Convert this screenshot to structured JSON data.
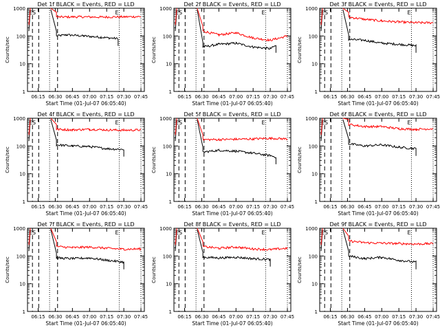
{
  "chart_data": [
    {
      "type": "line",
      "title": "Det 1f BLACK = Events, RED = LLD",
      "xlabel": "Start Time (01-Jul-07 06:05:40)",
      "ylabel": "Counts/sec",
      "yscale": "log",
      "ylim": [
        1,
        1000
      ],
      "x_ticks": [
        "06:15",
        "06:30",
        "06:45",
        "07:00",
        "07:15",
        "07:30",
        "07:45"
      ],
      "y_ticks": [
        "1",
        "10",
        "100",
        "1000"
      ],
      "markers": [
        "ES",
        "E"
      ],
      "series": [
        {
          "color": "#000000",
          "values": [
            {
              "x": "06:31",
              "y": 100
            },
            {
              "x": "06:40",
              "y": 110
            },
            {
              "x": "06:55",
              "y": 100
            },
            {
              "x": "07:10",
              "y": 90
            },
            {
              "x": "07:25",
              "y": 80
            }
          ]
        },
        {
          "color": "#ff0000",
          "values": [
            {
              "x": "06:31",
              "y": 480
            },
            {
              "x": "06:50",
              "y": 490
            },
            {
              "x": "07:10",
              "y": 480
            },
            {
              "x": "07:30",
              "y": 490
            },
            {
              "x": "07:45",
              "y": 500
            }
          ]
        }
      ]
    },
    {
      "type": "line",
      "title": "Det 2f BLACK = Events, RED = LLD",
      "xlabel": "Start Time (01-Jul-07 06:05:40)",
      "ylabel": "Counts/sec",
      "yscale": "log",
      "ylim": [
        1,
        1000
      ],
      "x_ticks": [
        "06:15",
        "06:30",
        "06:45",
        "07:00",
        "07:15",
        "07:30",
        "07:45"
      ],
      "y_ticks": [
        "1",
        "10",
        "100",
        "1000"
      ],
      "markers": [
        "ES",
        "E"
      ],
      "series": [
        {
          "color": "#000000",
          "values": [
            {
              "x": "06:31",
              "y": 40
            },
            {
              "x": "06:45",
              "y": 50
            },
            {
              "x": "07:00",
              "y": 55
            },
            {
              "x": "07:15",
              "y": 40
            },
            {
              "x": "07:30",
              "y": 35
            },
            {
              "x": "07:35",
              "y": 45
            }
          ]
        },
        {
          "color": "#ff0000",
          "values": [
            {
              "x": "06:31",
              "y": 150
            },
            {
              "x": "06:45",
              "y": 110
            },
            {
              "x": "07:00",
              "y": 130
            },
            {
              "x": "07:15",
              "y": 85
            },
            {
              "x": "07:30",
              "y": 70
            },
            {
              "x": "07:45",
              "y": 100
            }
          ]
        }
      ]
    },
    {
      "type": "line",
      "title": "Det 3f BLACK = Events, RED = LLD",
      "xlabel": "Start Time (01-Jul-07 06:05:40)",
      "ylabel": "Counts/sec",
      "yscale": "log",
      "ylim": [
        1,
        1000
      ],
      "x_ticks": [
        "06:15",
        "06:30",
        "06:45",
        "07:00",
        "07:15",
        "07:30",
        "07:45"
      ],
      "y_ticks": [
        "1",
        "10",
        "100",
        "1000"
      ],
      "markers": [
        "ES",
        "E"
      ],
      "series": [
        {
          "color": "#000000",
          "values": [
            {
              "x": "06:31",
              "y": 75
            },
            {
              "x": "06:45",
              "y": 70
            },
            {
              "x": "07:00",
              "y": 55
            },
            {
              "x": "07:15",
              "y": 50
            },
            {
              "x": "07:30",
              "y": 45
            }
          ]
        },
        {
          "color": "#ff0000",
          "values": [
            {
              "x": "06:31",
              "y": 480
            },
            {
              "x": "06:45",
              "y": 400
            },
            {
              "x": "07:00",
              "y": 350
            },
            {
              "x": "07:15",
              "y": 320
            },
            {
              "x": "07:30",
              "y": 300
            },
            {
              "x": "07:45",
              "y": 300
            }
          ]
        }
      ]
    },
    {
      "type": "line",
      "title": "Det 4f BLACK = Events, RED = LLD",
      "xlabel": "Start Time (01-Jul-07 06:05:40)",
      "ylabel": "Counts/sec",
      "yscale": "log",
      "ylim": [
        1,
        1000
      ],
      "x_ticks": [
        "06:15",
        "06:30",
        "06:45",
        "07:00",
        "07:15",
        "07:30",
        "07:45"
      ],
      "y_ticks": [
        "1",
        "10",
        "100",
        "1000"
      ],
      "markers": [
        "ES",
        "E"
      ],
      "series": [
        {
          "color": "#000000",
          "values": [
            {
              "x": "06:31",
              "y": 110
            },
            {
              "x": "06:45",
              "y": 100
            },
            {
              "x": "07:00",
              "y": 95
            },
            {
              "x": "07:15",
              "y": 80
            },
            {
              "x": "07:30",
              "y": 75
            }
          ]
        },
        {
          "color": "#ff0000",
          "values": [
            {
              "x": "06:31",
              "y": 400
            },
            {
              "x": "06:45",
              "y": 380
            },
            {
              "x": "07:00",
              "y": 400
            },
            {
              "x": "07:15",
              "y": 380
            },
            {
              "x": "07:30",
              "y": 370
            },
            {
              "x": "07:45",
              "y": 380
            }
          ]
        }
      ]
    },
    {
      "type": "line",
      "title": "Det 5f BLACK = Events, RED = LLD",
      "xlabel": "Start Time (01-Jul-07 06:05:40)",
      "ylabel": "Counts/sec",
      "yscale": "log",
      "ylim": [
        1,
        1000
      ],
      "x_ticks": [
        "06:15",
        "06:30",
        "06:45",
        "07:00",
        "07:15",
        "07:30",
        "07:45"
      ],
      "y_ticks": [
        "1",
        "10",
        "100",
        "1000"
      ],
      "markers": [
        "ES",
        "E"
      ],
      "series": [
        {
          "color": "#000000",
          "values": [
            {
              "x": "06:31",
              "y": 60
            },
            {
              "x": "06:45",
              "y": 70
            },
            {
              "x": "07:00",
              "y": 65
            },
            {
              "x": "07:15",
              "y": 55
            },
            {
              "x": "07:30",
              "y": 45
            },
            {
              "x": "07:35",
              "y": 40
            }
          ]
        },
        {
          "color": "#ff0000",
          "values": [
            {
              "x": "06:31",
              "y": 170
            },
            {
              "x": "06:45",
              "y": 170
            },
            {
              "x": "07:00",
              "y": 175
            },
            {
              "x": "07:15",
              "y": 180
            },
            {
              "x": "07:30",
              "y": 190
            },
            {
              "x": "07:45",
              "y": 180
            }
          ]
        }
      ]
    },
    {
      "type": "line",
      "title": "Det 6f BLACK = Events, RED = LLD",
      "xlabel": "Start Time (01-Jul-07 06:05:40)",
      "ylabel": "Counts/sec",
      "yscale": "log",
      "ylim": [
        1,
        1000
      ],
      "x_ticks": [
        "06:15",
        "06:30",
        "06:45",
        "07:00",
        "07:15",
        "07:30",
        "07:45"
      ],
      "y_ticks": [
        "1",
        "10",
        "100",
        "1000"
      ],
      "markers": [
        "ES",
        "E"
      ],
      "series": [
        {
          "color": "#000000",
          "values": [
            {
              "x": "06:31",
              "y": 120
            },
            {
              "x": "06:45",
              "y": 100
            },
            {
              "x": "07:00",
              "y": 110
            },
            {
              "x": "07:15",
              "y": 90
            },
            {
              "x": "07:30",
              "y": 80
            }
          ]
        },
        {
          "color": "#ff0000",
          "values": [
            {
              "x": "06:31",
              "y": 600
            },
            {
              "x": "06:45",
              "y": 500
            },
            {
              "x": "07:00",
              "y": 500
            },
            {
              "x": "07:15",
              "y": 420
            },
            {
              "x": "07:30",
              "y": 400
            },
            {
              "x": "07:45",
              "y": 420
            }
          ]
        }
      ]
    },
    {
      "type": "line",
      "title": "Det 7f BLACK = Events, RED = LLD",
      "xlabel": "Start Time (01-Jul-07 06:05:40)",
      "ylabel": "Counts/sec",
      "yscale": "log",
      "ylim": [
        1,
        1000
      ],
      "x_ticks": [
        "06:15",
        "06:30",
        "06:45",
        "07:00",
        "07:15",
        "07:30",
        "07:45"
      ],
      "y_ticks": [
        "1",
        "10",
        "100",
        "1000"
      ],
      "markers": [
        "ES",
        "E"
      ],
      "series": [
        {
          "color": "#000000",
          "values": [
            {
              "x": "06:31",
              "y": 85
            },
            {
              "x": "06:45",
              "y": 80
            },
            {
              "x": "07:00",
              "y": 85
            },
            {
              "x": "07:15",
              "y": 70
            },
            {
              "x": "07:30",
              "y": 60
            }
          ]
        },
        {
          "color": "#ff0000",
          "values": [
            {
              "x": "06:31",
              "y": 220
            },
            {
              "x": "06:45",
              "y": 200
            },
            {
              "x": "07:00",
              "y": 210
            },
            {
              "x": "07:15",
              "y": 190
            },
            {
              "x": "07:30",
              "y": 175
            },
            {
              "x": "07:45",
              "y": 180
            }
          ]
        }
      ]
    },
    {
      "type": "line",
      "title": "Det 8f BLACK = Events, RED = LLD",
      "xlabel": "Start Time (01-Jul-07 06:05:40)",
      "ylabel": "Counts/sec",
      "yscale": "log",
      "ylim": [
        1,
        1000
      ],
      "x_ticks": [
        "06:15",
        "06:30",
        "06:45",
        "07:00",
        "07:15",
        "07:30",
        "07:45"
      ],
      "y_ticks": [
        "1",
        "10",
        "100",
        "1000"
      ],
      "markers": [
        "ES",
        "E"
      ],
      "series": [
        {
          "color": "#000000",
          "values": [
            {
              "x": "06:31",
              "y": 90
            },
            {
              "x": "06:45",
              "y": 85
            },
            {
              "x": "07:00",
              "y": 90
            },
            {
              "x": "07:15",
              "y": 80
            },
            {
              "x": "07:30",
              "y": 75
            }
          ]
        },
        {
          "color": "#ff0000",
          "values": [
            {
              "x": "06:31",
              "y": 220
            },
            {
              "x": "06:45",
              "y": 190
            },
            {
              "x": "07:00",
              "y": 210
            },
            {
              "x": "07:15",
              "y": 180
            },
            {
              "x": "07:30",
              "y": 170
            },
            {
              "x": "07:45",
              "y": 190
            }
          ]
        }
      ]
    },
    {
      "type": "line",
      "title": "Det 9f BLACK = Events, RED = LLD",
      "xlabel": "Start Time (01-Jul-07 06:05:40)",
      "ylabel": "Counts/sec",
      "yscale": "log",
      "ylim": [
        1,
        1000
      ],
      "x_ticks": [
        "06:15",
        "06:30",
        "06:45",
        "07:00",
        "07:15",
        "07:30",
        "07:45"
      ],
      "y_ticks": [
        "1",
        "10",
        "100",
        "1000"
      ],
      "markers": [
        "ES",
        "E"
      ],
      "series": [
        {
          "color": "#000000",
          "values": [
            {
              "x": "06:31",
              "y": 100
            },
            {
              "x": "06:45",
              "y": 80
            },
            {
              "x": "07:00",
              "y": 90
            },
            {
              "x": "07:15",
              "y": 70
            },
            {
              "x": "07:30",
              "y": 60
            }
          ]
        },
        {
          "color": "#ff0000",
          "values": [
            {
              "x": "06:31",
              "y": 350
            },
            {
              "x": "06:45",
              "y": 300
            },
            {
              "x": "07:00",
              "y": 290
            },
            {
              "x": "07:15",
              "y": 280
            },
            {
              "x": "07:30",
              "y": 270
            },
            {
              "x": "07:45",
              "y": 280
            }
          ]
        }
      ]
    }
  ]
}
